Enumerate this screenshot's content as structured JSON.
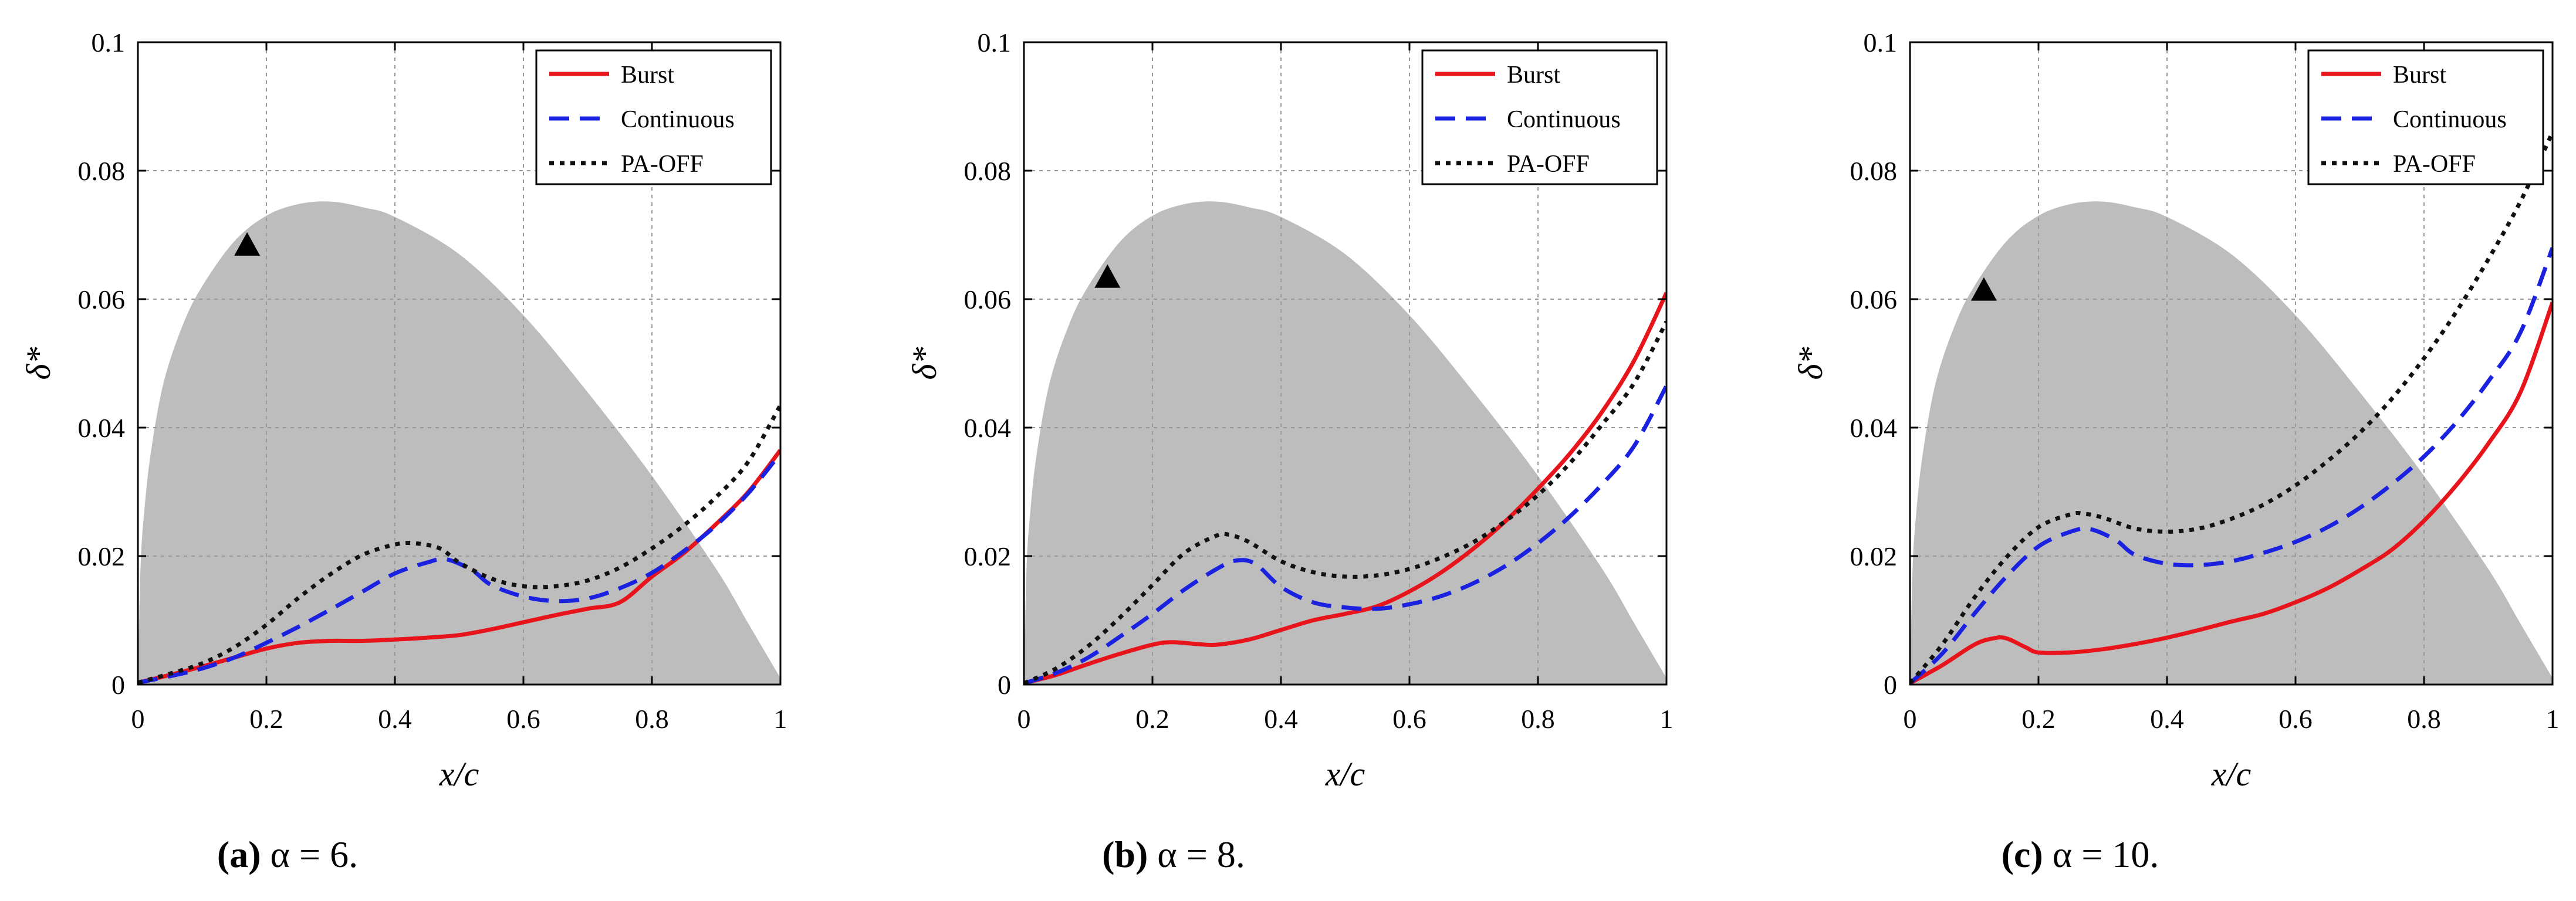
{
  "colors": {
    "burst": "#e8141c",
    "continuous": "#1a22e0",
    "pa_off": "#111111",
    "airfoil": "#bdbdbd",
    "grid": "#9a9a9a"
  },
  "chart_data": [
    {
      "type": "line",
      "panel_letter": "(a)",
      "caption_rest": "α = 6.",
      "xlabel": "x/c",
      "ylabel": "δ*",
      "xlim": [
        0,
        1
      ],
      "ylim": [
        0,
        0.1
      ],
      "x_ticks": [
        "0",
        "0.2",
        "0.4",
        "0.6",
        "0.8",
        "1"
      ],
      "y_ticks": [
        "0",
        "0.02",
        "0.04",
        "0.06",
        "0.08",
        "0.1"
      ],
      "legend": [
        "Burst",
        "Continuous",
        "PA-OFF"
      ],
      "legend_position": "top-right",
      "marker": {
        "x": 0.17,
        "y": 0.0685,
        "shape": "triangle"
      },
      "airfoil_profile": {
        "x": [
          0,
          0.004,
          0.01,
          0.02,
          0.04,
          0.07,
          0.1,
          0.15,
          0.2,
          0.25,
          0.3,
          0.35,
          0.4,
          0.5,
          0.6,
          0.7,
          0.8,
          0.9,
          0.95,
          1
        ],
        "y": [
          0,
          0.018,
          0.027,
          0.036,
          0.047,
          0.056,
          0.062,
          0.069,
          0.073,
          0.0748,
          0.0752,
          0.0743,
          0.0728,
          0.067,
          0.0575,
          0.0455,
          0.0325,
          0.018,
          0.0095,
          0.001
        ]
      },
      "series": [
        {
          "name": "Burst",
          "x": [
            0,
            0.05,
            0.1,
            0.15,
            0.2,
            0.25,
            0.3,
            0.35,
            0.4,
            0.45,
            0.5,
            0.55,
            0.6,
            0.65,
            0.7,
            0.75,
            0.8,
            0.85,
            0.9,
            0.95,
            1
          ],
          "y": [
            0.0003,
            0.0015,
            0.0028,
            0.0042,
            0.0056,
            0.0065,
            0.0068,
            0.0068,
            0.007,
            0.0073,
            0.0077,
            0.0086,
            0.0097,
            0.0108,
            0.0118,
            0.0128,
            0.0168,
            0.0205,
            0.025,
            0.03,
            0.0365
          ]
        },
        {
          "name": "Continuous",
          "x": [
            0,
            0.05,
            0.1,
            0.15,
            0.2,
            0.25,
            0.3,
            0.35,
            0.4,
            0.45,
            0.48,
            0.52,
            0.55,
            0.6,
            0.65,
            0.7,
            0.75,
            0.8,
            0.85,
            0.9,
            0.95,
            1
          ],
          "y": [
            0.0003,
            0.0013,
            0.0025,
            0.0042,
            0.0065,
            0.009,
            0.0117,
            0.0145,
            0.0173,
            0.019,
            0.0195,
            0.0178,
            0.0155,
            0.0137,
            0.013,
            0.0134,
            0.015,
            0.0174,
            0.0208,
            0.0248,
            0.0298,
            0.036
          ]
        },
        {
          "name": "PA-OFF",
          "x": [
            0,
            0.05,
            0.1,
            0.15,
            0.2,
            0.25,
            0.3,
            0.35,
            0.4,
            0.43,
            0.47,
            0.5,
            0.55,
            0.6,
            0.65,
            0.7,
            0.75,
            0.8,
            0.85,
            0.9,
            0.95,
            1
          ],
          "y": [
            0.0003,
            0.0017,
            0.0033,
            0.0058,
            0.0093,
            0.0135,
            0.0172,
            0.0202,
            0.0218,
            0.022,
            0.0212,
            0.019,
            0.0165,
            0.0153,
            0.0153,
            0.0162,
            0.0182,
            0.0212,
            0.0248,
            0.0292,
            0.0347,
            0.0435
          ]
        }
      ]
    },
    {
      "type": "line",
      "panel_letter": "(b)",
      "caption_rest": "α = 8.",
      "xlabel": "x/c",
      "ylabel": "δ*",
      "xlim": [
        0,
        1
      ],
      "ylim": [
        0,
        0.1
      ],
      "x_ticks": [
        "0",
        "0.2",
        "0.4",
        "0.6",
        "0.8",
        "1"
      ],
      "y_ticks": [
        "0",
        "0.02",
        "0.04",
        "0.06",
        "0.08",
        "0.1"
      ],
      "legend": [
        "Burst",
        "Continuous",
        "PA-OFF"
      ],
      "legend_position": "top-right",
      "marker": {
        "x": 0.13,
        "y": 0.0635,
        "shape": "triangle"
      },
      "airfoil_profile": {
        "x": [
          0,
          0.004,
          0.01,
          0.02,
          0.04,
          0.07,
          0.1,
          0.15,
          0.2,
          0.25,
          0.3,
          0.35,
          0.4,
          0.5,
          0.6,
          0.7,
          0.8,
          0.9,
          0.95,
          1
        ],
        "y": [
          0,
          0.018,
          0.027,
          0.036,
          0.047,
          0.056,
          0.062,
          0.069,
          0.073,
          0.0748,
          0.0752,
          0.0743,
          0.0728,
          0.067,
          0.0575,
          0.0455,
          0.0325,
          0.018,
          0.0095,
          0.001
        ]
      },
      "series": [
        {
          "name": "Burst",
          "x": [
            0,
            0.05,
            0.1,
            0.15,
            0.2,
            0.23,
            0.27,
            0.3,
            0.35,
            0.4,
            0.45,
            0.5,
            0.55,
            0.6,
            0.65,
            0.7,
            0.75,
            0.8,
            0.85,
            0.9,
            0.95,
            1
          ],
          "y": [
            0.0002,
            0.0015,
            0.0032,
            0.0048,
            0.0062,
            0.0066,
            0.0063,
            0.0062,
            0.007,
            0.0085,
            0.01,
            0.011,
            0.0122,
            0.0145,
            0.0175,
            0.0212,
            0.0255,
            0.0305,
            0.036,
            0.0425,
            0.0505,
            0.061
          ]
        },
        {
          "name": "Continuous",
          "x": [
            0,
            0.05,
            0.1,
            0.15,
            0.2,
            0.25,
            0.3,
            0.33,
            0.36,
            0.4,
            0.45,
            0.5,
            0.55,
            0.6,
            0.65,
            0.7,
            0.75,
            0.8,
            0.85,
            0.9,
            0.95,
            1
          ],
          "y": [
            0.0002,
            0.0018,
            0.0042,
            0.0075,
            0.011,
            0.0148,
            0.018,
            0.0193,
            0.0188,
            0.0152,
            0.0128,
            0.012,
            0.0118,
            0.0125,
            0.0138,
            0.0158,
            0.0185,
            0.022,
            0.0262,
            0.0312,
            0.0372,
            0.0465
          ]
        },
        {
          "name": "PA-OFF",
          "x": [
            0,
            0.05,
            0.1,
            0.15,
            0.2,
            0.25,
            0.3,
            0.32,
            0.35,
            0.4,
            0.45,
            0.5,
            0.55,
            0.6,
            0.65,
            0.7,
            0.75,
            0.8,
            0.85,
            0.9,
            0.95,
            1
          ],
          "y": [
            0.0002,
            0.0025,
            0.006,
            0.0105,
            0.0155,
            0.0205,
            0.0232,
            0.0233,
            0.0222,
            0.0192,
            0.0175,
            0.0168,
            0.017,
            0.018,
            0.0198,
            0.0222,
            0.0255,
            0.0295,
            0.0345,
            0.0405,
            0.047,
            0.0565
          ]
        }
      ]
    },
    {
      "type": "line",
      "panel_letter": "(c)",
      "caption_rest": "α = 10.",
      "xlabel": "x/c",
      "ylabel": "δ*",
      "xlim": [
        0,
        1
      ],
      "ylim": [
        0,
        0.1
      ],
      "x_ticks": [
        "0",
        "0.2",
        "0.4",
        "0.6",
        "0.8",
        "1"
      ],
      "y_ticks": [
        "0",
        "0.02",
        "0.04",
        "0.06",
        "0.08",
        "0.1"
      ],
      "legend": [
        "Burst",
        "Continuous",
        "PA-OFF"
      ],
      "legend_position": "top-right",
      "marker": {
        "x": 0.115,
        "y": 0.0615,
        "shape": "triangle"
      },
      "airfoil_profile": {
        "x": [
          0,
          0.004,
          0.01,
          0.02,
          0.04,
          0.07,
          0.1,
          0.15,
          0.2,
          0.25,
          0.3,
          0.35,
          0.4,
          0.5,
          0.6,
          0.7,
          0.8,
          0.9,
          0.95,
          1
        ],
        "y": [
          0,
          0.018,
          0.027,
          0.036,
          0.047,
          0.056,
          0.062,
          0.069,
          0.073,
          0.0748,
          0.0752,
          0.0743,
          0.0728,
          0.067,
          0.0575,
          0.0455,
          0.0325,
          0.018,
          0.0095,
          0.001
        ]
      },
      "series": [
        {
          "name": "Burst",
          "x": [
            0,
            0.05,
            0.1,
            0.13,
            0.15,
            0.18,
            0.2,
            0.25,
            0.3,
            0.35,
            0.4,
            0.45,
            0.5,
            0.55,
            0.6,
            0.65,
            0.7,
            0.75,
            0.8,
            0.85,
            0.9,
            0.95,
            1
          ],
          "y": [
            0.0002,
            0.003,
            0.0062,
            0.0072,
            0.0072,
            0.0058,
            0.005,
            0.005,
            0.0055,
            0.0063,
            0.0073,
            0.0085,
            0.0098,
            0.011,
            0.0128,
            0.015,
            0.0178,
            0.021,
            0.0255,
            0.031,
            0.0375,
            0.0455,
            0.0595
          ]
        },
        {
          "name": "Continuous",
          "x": [
            0,
            0.05,
            0.1,
            0.15,
            0.2,
            0.25,
            0.28,
            0.32,
            0.35,
            0.4,
            0.45,
            0.5,
            0.55,
            0.6,
            0.65,
            0.7,
            0.75,
            0.8,
            0.85,
            0.9,
            0.95,
            1
          ],
          "y": [
            0.0002,
            0.0048,
            0.011,
            0.0168,
            0.0215,
            0.0238,
            0.0242,
            0.0225,
            0.0202,
            0.0188,
            0.0186,
            0.0192,
            0.0205,
            0.0222,
            0.0245,
            0.0275,
            0.0312,
            0.0355,
            0.0408,
            0.0472,
            0.0548,
            0.068
          ]
        },
        {
          "name": "PA-OFF",
          "x": [
            0,
            0.05,
            0.1,
            0.15,
            0.2,
            0.25,
            0.27,
            0.3,
            0.35,
            0.4,
            0.45,
            0.5,
            0.55,
            0.6,
            0.65,
            0.7,
            0.75,
            0.8,
            0.85,
            0.9,
            0.95,
            1
          ],
          "y": [
            0.0002,
            0.0062,
            0.0135,
            0.0198,
            0.0245,
            0.0265,
            0.0266,
            0.026,
            0.0243,
            0.0238,
            0.0243,
            0.0258,
            0.028,
            0.031,
            0.0348,
            0.0392,
            0.0445,
            0.0508,
            0.058,
            0.0662,
            0.0752,
            0.086
          ]
        }
      ]
    }
  ]
}
